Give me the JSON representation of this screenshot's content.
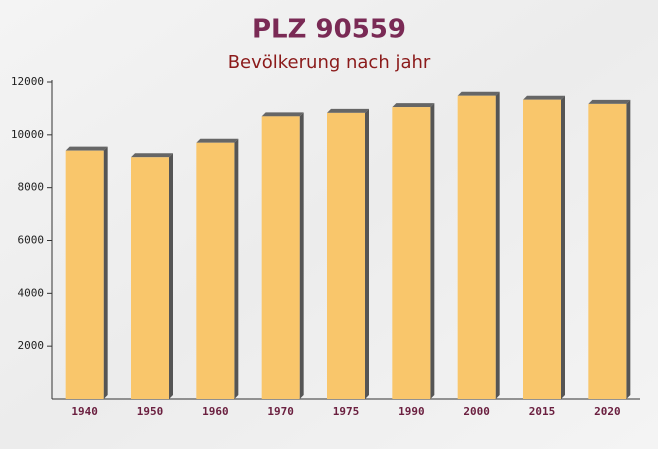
{
  "chart_data": {
    "type": "bar",
    "title": "PLZ 90559",
    "subtitle": "Bevölkerung nach jahr",
    "categories": [
      "1940",
      "1950",
      "1960",
      "1970",
      "1975",
      "1990",
      "2000",
      "2015",
      "2020"
    ],
    "values": [
      9400,
      9150,
      9700,
      10700,
      10830,
      11050,
      11480,
      11330,
      11170
    ],
    "color": "#f9c66b",
    "ylim": [
      0,
      12000
    ],
    "yticks": [
      2000,
      4000,
      6000,
      8000,
      10000,
      12000
    ]
  }
}
